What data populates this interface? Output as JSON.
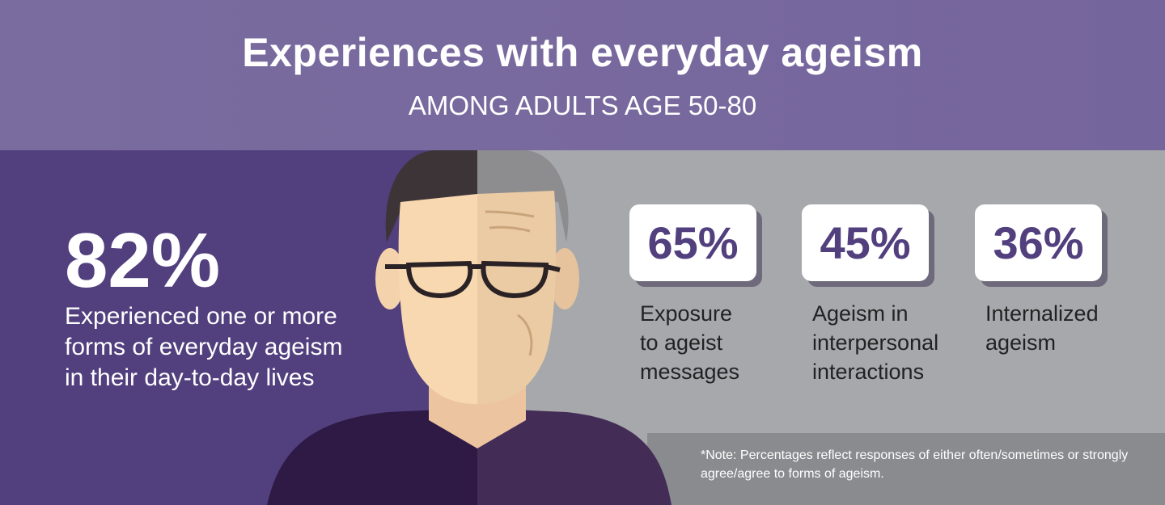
{
  "header": {
    "title": "Experiences with everyday ageism",
    "subtitle": "AMONG ADULTS AGE 50-80"
  },
  "main_stat": {
    "value": "82%",
    "description": "Experienced one or more forms of everyday ageism in their day-to-day lives"
  },
  "stats": [
    {
      "value": "65%",
      "label": "Exposure to ageist messages"
    },
    {
      "value": "45%",
      "label": "Ageism in interpersonal interactions"
    },
    {
      "value": "36%",
      "label": "Internalized ageism"
    }
  ],
  "note": "*Note: Percentages reflect responses of either often/sometimes or strongly agree/agree to forms of ageism."
}
